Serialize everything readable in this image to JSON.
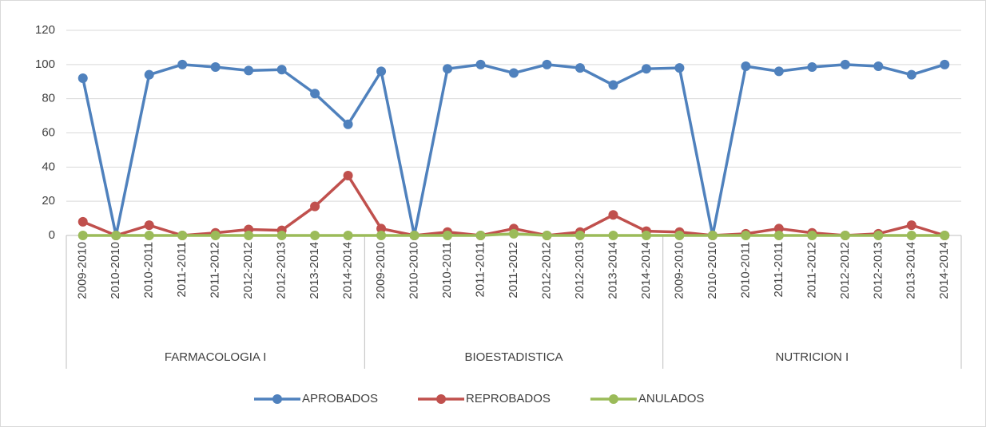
{
  "chart_data": {
    "type": "line",
    "categories": [
      "2009-2010",
      "2010-2010",
      "2010-2011",
      "2011-2011",
      "2011-2012",
      "2012-2012",
      "2012-2013",
      "2013-2014",
      "2014-2014",
      "2009-2010",
      "2010-2010",
      "2010-2011",
      "2011-2011",
      "2011-2012",
      "2012-2012",
      "2012-2013",
      "2013-2014",
      "2014-2014",
      "2009-2010",
      "2010-2010",
      "2010-2011",
      "2011-2011",
      "2011-2012",
      "2012-2012",
      "2012-2013",
      "2013-2014",
      "2014-2014"
    ],
    "category_groups": [
      "FARMACOLOGIA I",
      "BIOESTADISTICA",
      "NUTRICION I"
    ],
    "series": [
      {
        "name": "APROBADOS",
        "color": "#4f81bd",
        "values": [
          92,
          0,
          94,
          100,
          98.5,
          96.5,
          97,
          83,
          65,
          96,
          0,
          97.5,
          100,
          95,
          100,
          98,
          88,
          97.5,
          98,
          0,
          99,
          96,
          98.5,
          100,
          99,
          94,
          100
        ]
      },
      {
        "name": "REPROBADOS",
        "color": "#c0504d",
        "values": [
          8,
          0,
          6,
          0,
          1.5,
          3.5,
          3,
          17,
          35,
          4,
          0,
          2,
          0,
          4,
          0,
          2,
          12,
          2.5,
          2,
          0,
          1,
          4,
          1.5,
          0,
          1,
          6,
          0
        ]
      },
      {
        "name": "ANULADOS",
        "color": "#9bbb59",
        "values": [
          0,
          0,
          0,
          0,
          0,
          0,
          0,
          0,
          0,
          0,
          0,
          0,
          0,
          1,
          0,
          0,
          0,
          0,
          0,
          0,
          0,
          0,
          0,
          0,
          0,
          0,
          0
        ]
      }
    ],
    "ylim": [
      0,
      120
    ],
    "yticks": [
      0,
      20,
      40,
      60,
      80,
      100,
      120
    ],
    "grid": true,
    "legend": "bottom"
  }
}
